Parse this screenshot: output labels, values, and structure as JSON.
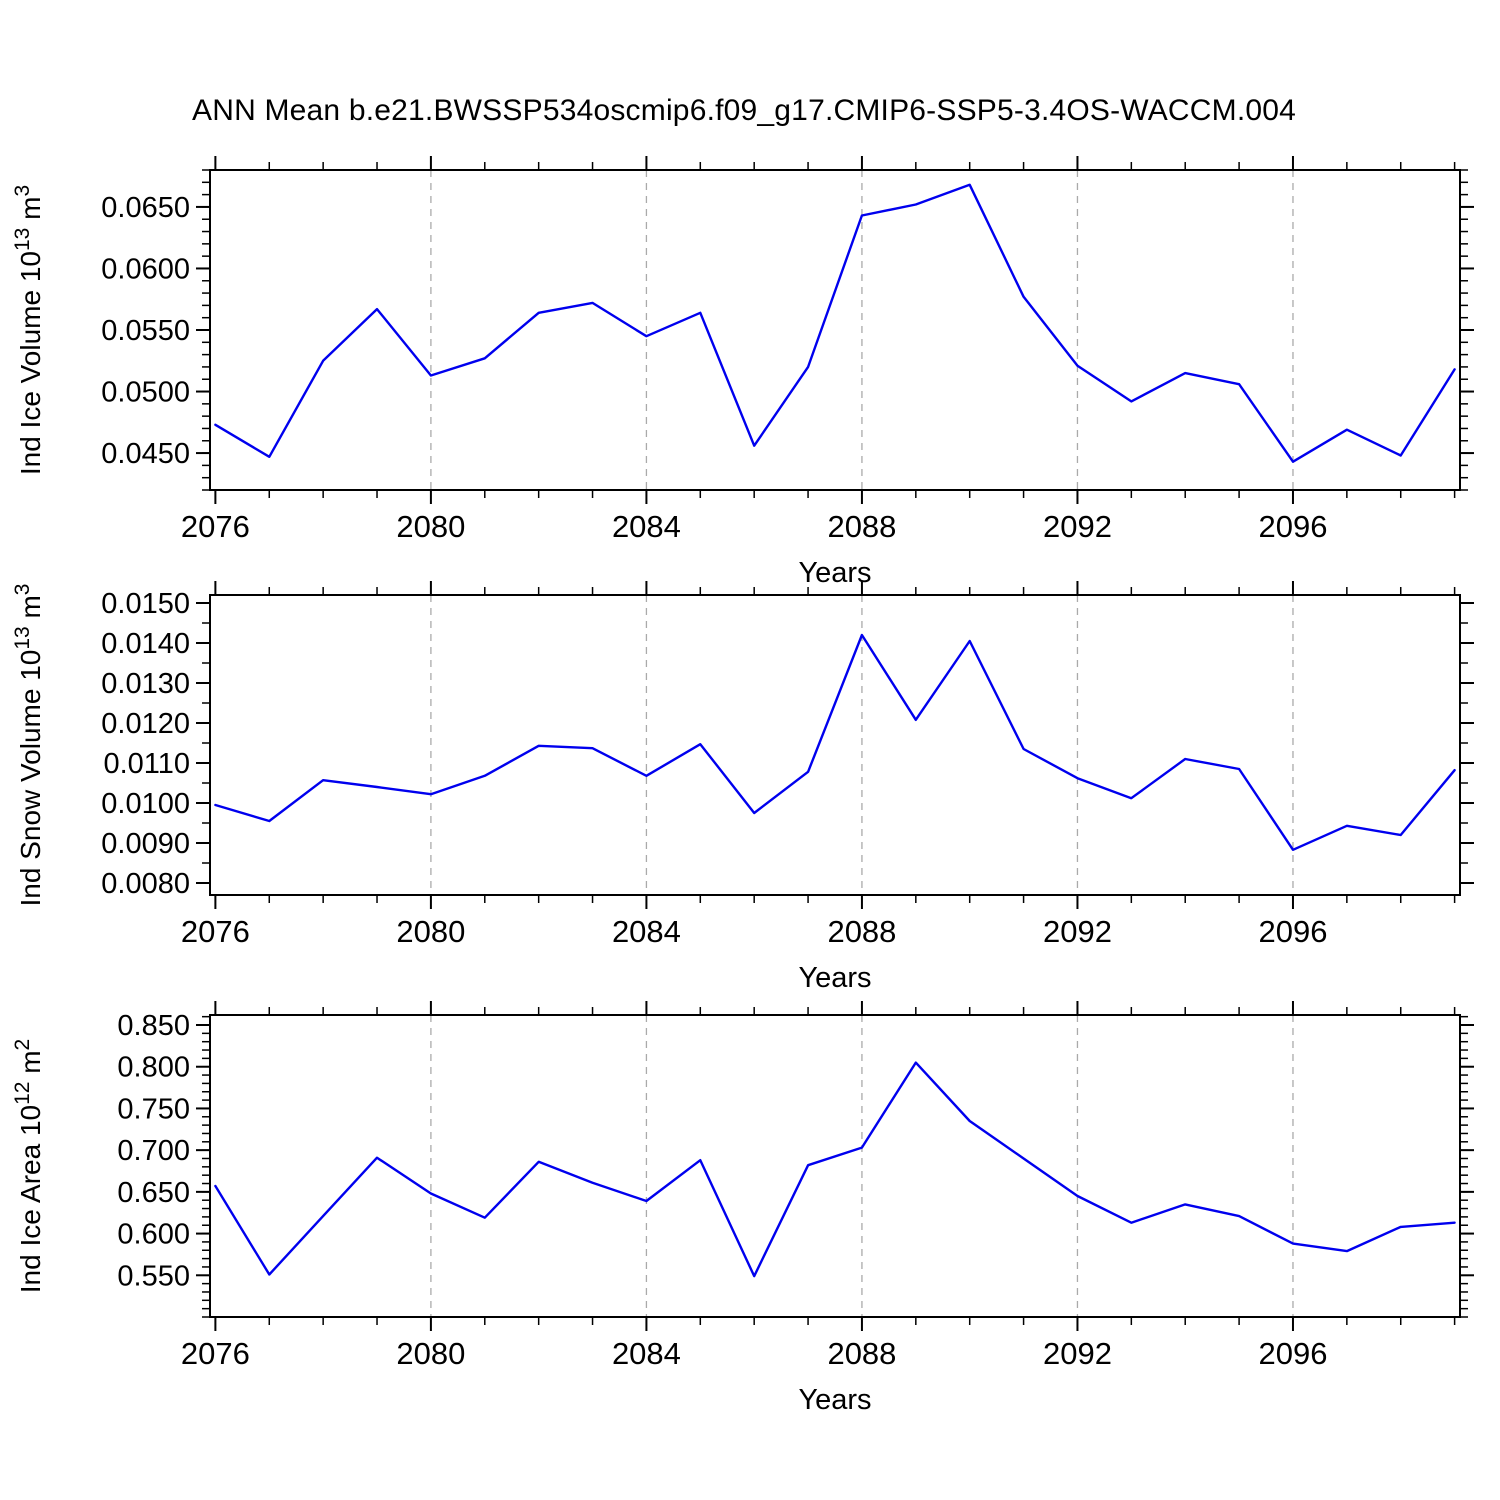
{
  "title": "ANN Mean b.e21.BWSSP534oscmip6.f09_g17.CMIP6-SSP5-3.4OS-WACCM.004",
  "line_color": "#0000EE",
  "grid_color": "#AAAAAA",
  "chart_data": [
    {
      "type": "line",
      "panel": "ice-volume",
      "title": "",
      "xlabel": "Years",
      "ylabel_parts": [
        {
          "text": "Ind Ice Volume 10",
          "sup": false
        },
        {
          "text": "13",
          "sup": true
        },
        {
          "text": " m",
          "sup": false
        },
        {
          "text": "3",
          "sup": true
        }
      ],
      "x": [
        2076,
        2077,
        2078,
        2079,
        2080,
        2081,
        2082,
        2083,
        2084,
        2085,
        2086,
        2087,
        2088,
        2089,
        2090,
        2091,
        2092,
        2093,
        2094,
        2095,
        2096,
        2097,
        2098,
        2099
      ],
      "values": [
        0.0473,
        0.0447,
        0.0525,
        0.0567,
        0.0513,
        0.0527,
        0.0564,
        0.0572,
        0.0545,
        0.0564,
        0.0456,
        0.052,
        0.0643,
        0.0652,
        0.0668,
        0.0577,
        0.0521,
        0.0492,
        0.0515,
        0.0506,
        0.0443,
        0.0469,
        0.0448,
        0.0518
      ],
      "xlim": [
        2075.9,
        2099.1
      ],
      "ylim": [
        0.042,
        0.068
      ],
      "xticks": [
        2076,
        2080,
        2084,
        2088,
        2092,
        2096
      ],
      "x_minor_step": 1,
      "yticks": [
        {
          "v": 0.045,
          "label": "0.0450"
        },
        {
          "v": 0.05,
          "label": "0.0500"
        },
        {
          "v": 0.055,
          "label": "0.0550"
        },
        {
          "v": 0.06,
          "label": "0.0600"
        },
        {
          "v": 0.065,
          "label": "0.0650"
        }
      ],
      "y_minor_step": 0.001,
      "grid_x": [
        2080,
        2084,
        2088,
        2092,
        2096
      ],
      "grid_on": true
    },
    {
      "type": "line",
      "panel": "snow-volume",
      "title": "",
      "xlabel": "Years",
      "ylabel_parts": [
        {
          "text": "Ind Snow Volume 10",
          "sup": false
        },
        {
          "text": "13",
          "sup": true
        },
        {
          "text": " m",
          "sup": false
        },
        {
          "text": "3",
          "sup": true
        }
      ],
      "x": [
        2076,
        2077,
        2078,
        2079,
        2080,
        2081,
        2082,
        2083,
        2084,
        2085,
        2086,
        2087,
        2088,
        2089,
        2090,
        2091,
        2092,
        2093,
        2094,
        2095,
        2096,
        2097,
        2098,
        2099
      ],
      "values": [
        0.00995,
        0.00955,
        0.01057,
        0.0104,
        0.01022,
        0.01068,
        0.01143,
        0.01137,
        0.01068,
        0.01147,
        0.00975,
        0.01078,
        0.0142,
        0.01208,
        0.01405,
        0.01135,
        0.01062,
        0.01012,
        0.0111,
        0.01085,
        0.00883,
        0.00943,
        0.0092,
        0.01082
      ],
      "xlim": [
        2075.9,
        2099.1
      ],
      "ylim": [
        0.0077,
        0.0152
      ],
      "xticks": [
        2076,
        2080,
        2084,
        2088,
        2092,
        2096
      ],
      "x_minor_step": 1,
      "yticks": [
        {
          "v": 0.008,
          "label": "0.0080"
        },
        {
          "v": 0.009,
          "label": "0.0090"
        },
        {
          "v": 0.01,
          "label": "0.0100"
        },
        {
          "v": 0.011,
          "label": "0.0110"
        },
        {
          "v": 0.012,
          "label": "0.0120"
        },
        {
          "v": 0.013,
          "label": "0.0130"
        },
        {
          "v": 0.014,
          "label": "0.0140"
        },
        {
          "v": 0.015,
          "label": "0.0150"
        }
      ],
      "y_minor_step": 0.0005,
      "grid_x": [
        2080,
        2084,
        2088,
        2092,
        2096
      ],
      "grid_on": true
    },
    {
      "type": "line",
      "panel": "ice-area",
      "title": "",
      "xlabel": "Years",
      "ylabel_parts": [
        {
          "text": "Ind Ice Area 10",
          "sup": false
        },
        {
          "text": "12",
          "sup": true
        },
        {
          "text": " m",
          "sup": false
        },
        {
          "text": "2",
          "sup": true
        }
      ],
      "x": [
        2076,
        2077,
        2078,
        2079,
        2080,
        2081,
        2082,
        2083,
        2084,
        2085,
        2086,
        2087,
        2088,
        2089,
        2090,
        2091,
        2092,
        2093,
        2094,
        2095,
        2096,
        2097,
        2098,
        2099
      ],
      "values": [
        0.657,
        0.551,
        0.621,
        0.691,
        0.648,
        0.619,
        0.686,
        0.661,
        0.639,
        0.688,
        0.549,
        0.682,
        0.703,
        0.805,
        0.735,
        0.69,
        0.645,
        0.613,
        0.635,
        0.621,
        0.588,
        0.579,
        0.608,
        0.613
      ],
      "xlim": [
        2075.9,
        2099.1
      ],
      "ylim": [
        0.5,
        0.862
      ],
      "xticks": [
        2076,
        2080,
        2084,
        2088,
        2092,
        2096
      ],
      "x_minor_step": 1,
      "yticks": [
        {
          "v": 0.55,
          "label": "0.550"
        },
        {
          "v": 0.6,
          "label": "0.600"
        },
        {
          "v": 0.65,
          "label": "0.650"
        },
        {
          "v": 0.7,
          "label": "0.700"
        },
        {
          "v": 0.75,
          "label": "0.750"
        },
        {
          "v": 0.8,
          "label": "0.800"
        },
        {
          "v": 0.85,
          "label": "0.850"
        }
      ],
      "y_minor_step": 0.01,
      "grid_x": [
        2080,
        2084,
        2088,
        2092,
        2096
      ],
      "grid_on": true
    }
  ]
}
